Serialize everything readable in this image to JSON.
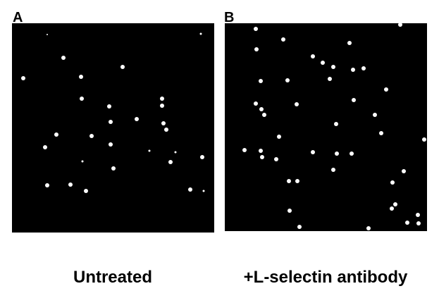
{
  "panels": [
    {
      "label": "A",
      "caption": "Untreated"
    },
    {
      "label": "B",
      "caption": "+L-selectin antibody"
    }
  ]
}
